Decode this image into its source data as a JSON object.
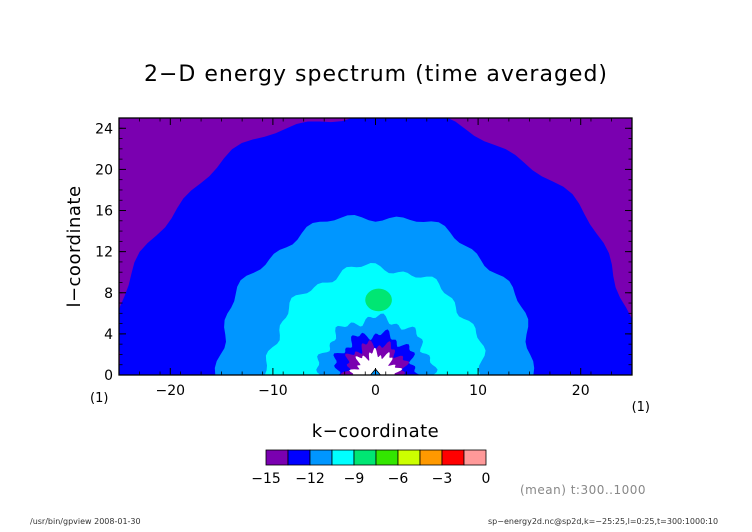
{
  "header": {
    "title": "2−D energy spectrum (time averaged)"
  },
  "footer": {
    "left": "/usr/bin/gpview  2008-01-30",
    "right": "sp−energy2d.nc@sp2d,k=−25:25,l=0:25,t=300:1000:10"
  },
  "annotation": "(mean) t:300..1000",
  "chart_data": {
    "type": "contour",
    "title": "2−D energy spectrum (time averaged)",
    "xlabel": "k−coordinate",
    "ylabel": "l−coordinate",
    "x_unit": "(1)",
    "y_unit": "(1)",
    "xlim": [
      -25,
      25
    ],
    "ylim": [
      0,
      25
    ],
    "xticks": [
      -20,
      -10,
      0,
      10,
      20
    ],
    "yticks": [
      0,
      4,
      8,
      12,
      16,
      20,
      24
    ],
    "xtick_labels": [
      "−20",
      "−10",
      "0",
      "10",
      "20"
    ],
    "ytick_labels": [
      "0",
      "4",
      "8",
      "12",
      "16",
      "20",
      "24"
    ],
    "levels": [
      -15,
      -13.5,
      -12,
      -10.5,
      -9,
      -7.5,
      -6,
      -4.5,
      -3,
      -1.5,
      0
    ],
    "colorbar": {
      "tick_values": [
        -15,
        -12,
        -9,
        -6,
        -3,
        0
      ],
      "tick_labels": [
        "−15",
        "−12",
        "−9",
        "−6",
        "−3",
        "0"
      ],
      "colors": [
        "#7a00b0",
        "#0000ff",
        "#0096ff",
        "#00ffff",
        "#00e673",
        "#33e600",
        "#ccff00",
        "#ff9900",
        "#ff0000",
        "#ff9999"
      ]
    },
    "contour_regions": [
      {
        "level": [
          -15,
          -13.5
        ],
        "color": "#7a00b0",
        "radius": 99
      },
      {
        "level": [
          -13.5,
          -12
        ],
        "color": "#0000ff",
        "radius": 25.5
      },
      {
        "level": [
          -12,
          -10.5
        ],
        "color": "#0096ff",
        "radius": 15.5
      },
      {
        "level": [
          -10.5,
          -9
        ],
        "color": "#00ffff",
        "radius": 10.5
      },
      {
        "level": [
          -9,
          -7.5
        ],
        "color": "#0096ff",
        "radius": 5.5
      },
      {
        "level": [
          -10.5,
          -12
        ],
        "color": "#0000ff",
        "radius": 4.0
      },
      {
        "level": [
          -13.5,
          -15
        ],
        "color": "#7a00b0",
        "radius": 3.0
      },
      {
        "level": [
          "below -15"
        ],
        "color": "#ffffff",
        "radius": 2.1
      }
    ],
    "features": [
      {
        "label": "local maximum",
        "x": 0.3,
        "y": 7.3,
        "level": [
          -9,
          -7.5
        ],
        "color": "#00e673"
      }
    ]
  }
}
